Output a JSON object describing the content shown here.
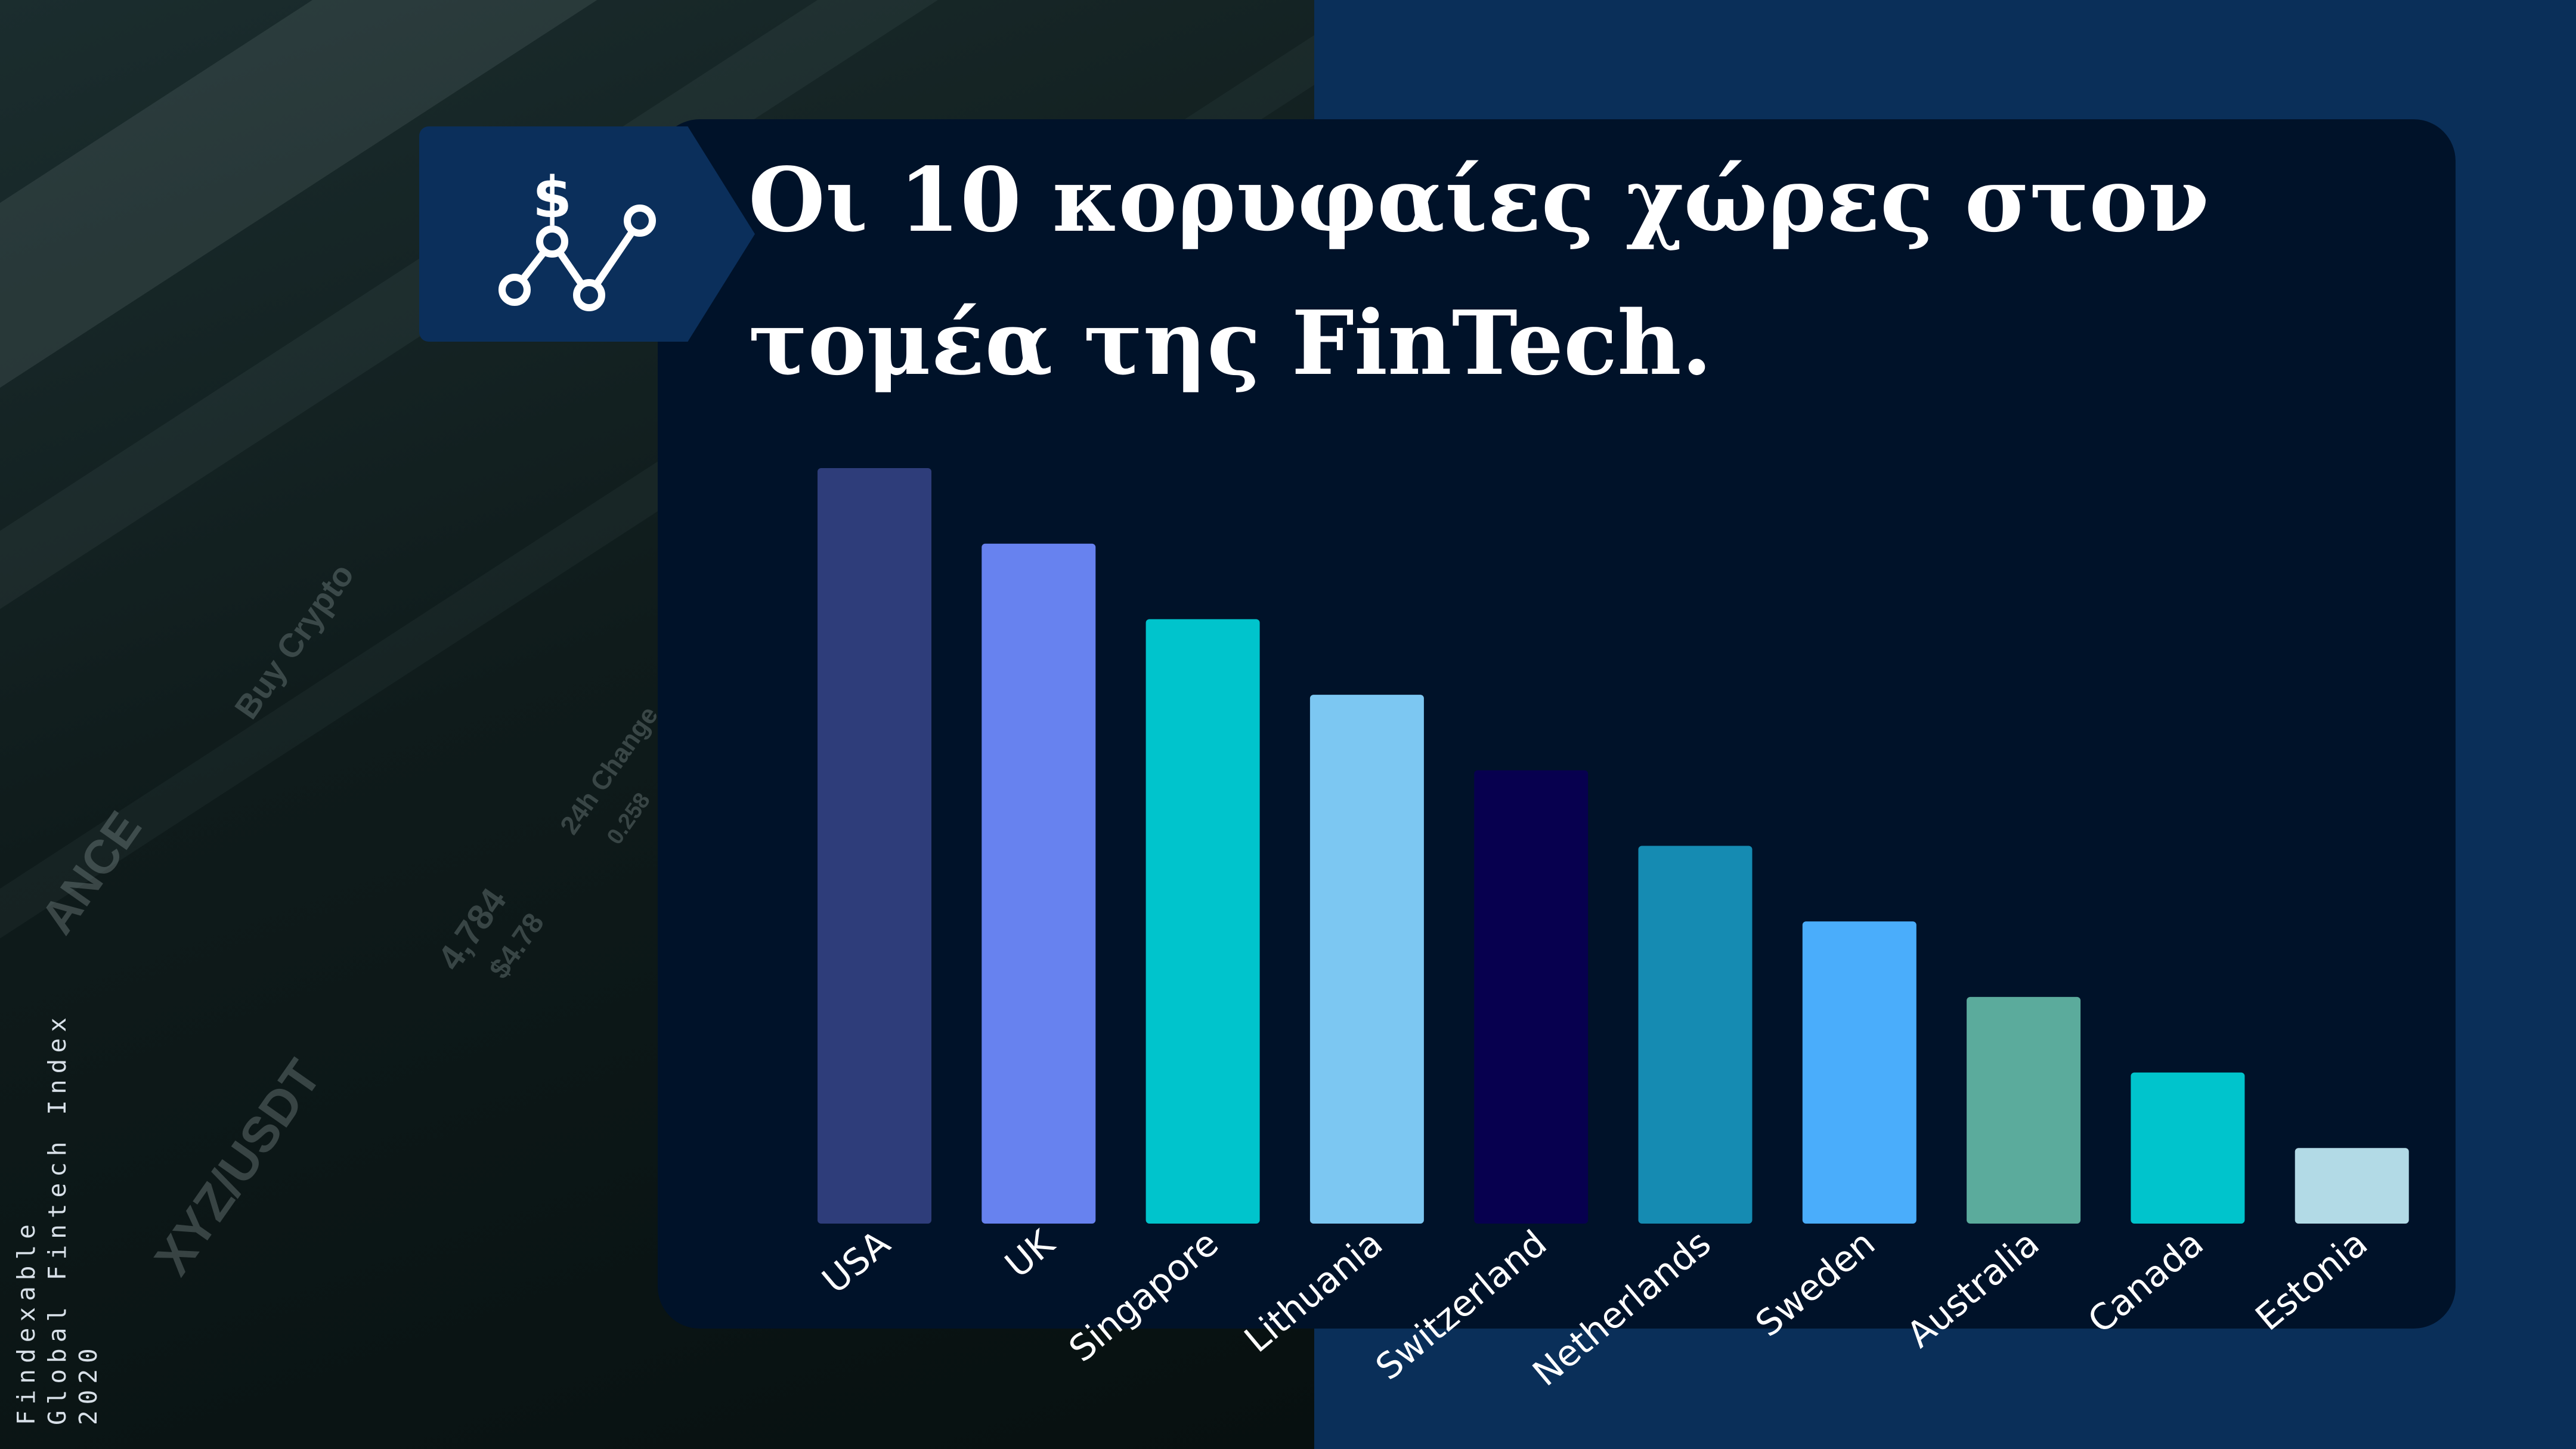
{
  "title": "Οι 10 κορυφαίες χώρες στον τομέα της FinTech.",
  "source_note": [
    "Findexable",
    "Global Fintech Index",
    "2020"
  ],
  "icon": "dollar-trend-line-icon",
  "background_photo_text": [
    "ANCE",
    "Buy Crypto",
    "XYZ/USDT",
    "4,784",
    "$4.78",
    "24h Change",
    "0.258"
  ],
  "colors": {
    "page_background": "#0a2f59",
    "card_background": "#001229",
    "title_text": "#ffffff"
  },
  "chart_data": {
    "type": "bar",
    "categories": [
      "USA",
      "UK",
      "Singapore",
      "Lithuania",
      "Switzerland",
      "Netherlands",
      "Sweden",
      "Australia",
      "Canada",
      "Estonia"
    ],
    "values": [
      10,
      9,
      8,
      7,
      6,
      5,
      4,
      3,
      2,
      1
    ],
    "bar_colors": [
      "#2e3d7a",
      "#6782ef",
      "#00c4cc",
      "#7cc7f2",
      "#07004f",
      "#158bb2",
      "#4aadfb",
      "#5bab9c",
      "#00c4cc",
      "#b2dae6"
    ],
    "ylim": [
      0,
      10
    ],
    "xlabel": "",
    "ylabel": "",
    "grid": false,
    "legend": "none",
    "y_axis_visible": false
  }
}
